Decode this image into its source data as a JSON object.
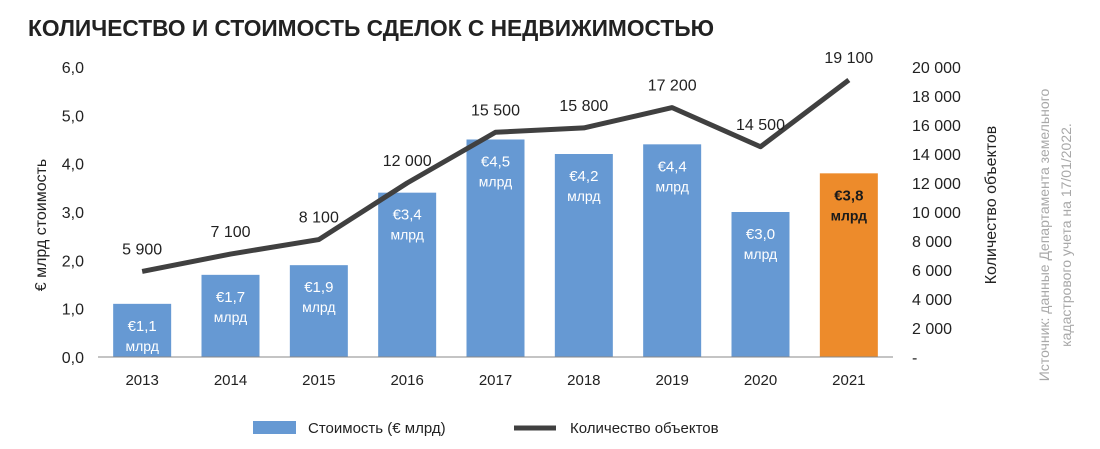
{
  "chart_data": {
    "type": "bar+line",
    "title": "КОЛИЧЕСТВО И СТОИМОСТЬ СДЕЛОК С НЕДВИЖИМОСТЬЮ",
    "categories": [
      "2013",
      "2014",
      "2015",
      "2016",
      "2017",
      "2018",
      "2019",
      "2020",
      "2021"
    ],
    "series": [
      {
        "name": "Стоимость (€ млрд)",
        "kind": "bar",
        "axis": "left",
        "values": [
          1.1,
          1.7,
          1.9,
          3.4,
          4.5,
          4.2,
          4.4,
          3.0,
          3.8
        ],
        "labels": [
          "€1,1",
          "€1,7",
          "€1,9",
          "€3,4",
          "€4,5",
          "€4,2",
          "€4,4",
          "€3,0",
          "€3,8"
        ],
        "label_unit": "млрд",
        "color": "#6699d3",
        "highlight_color": "#ed8b2b",
        "highlight_index": 8
      },
      {
        "name": "Количество объектов",
        "kind": "line",
        "axis": "right",
        "values": [
          5900,
          7100,
          8100,
          12000,
          15500,
          15800,
          17200,
          14500,
          19100
        ],
        "labels": [
          "5 900",
          "7 100",
          "8 100",
          "12 000",
          "15 500",
          "15 800",
          "17 200",
          "14 500",
          "19 100"
        ],
        "color": "#404040"
      }
    ],
    "ylabel": "€ млрд стоимость",
    "y2label": "Количество объектов",
    "ylim": [
      0,
      6
    ],
    "y2lim": [
      0,
      20000
    ],
    "yticks": [
      "0,0",
      "1,0",
      "2,0",
      "3,0",
      "4,0",
      "5,0",
      "6,0"
    ],
    "y2ticks": [
      "-",
      "2 000",
      "4 000",
      "6 000",
      "8 000",
      "10 000",
      "12 000",
      "14 000",
      "16 000",
      "18 000",
      "20 000"
    ],
    "grid": false,
    "legend": "bottom",
    "source": [
      "Источник: данные Департамента земельного",
      "кадастрового учета на 17/01/2022."
    ]
  }
}
